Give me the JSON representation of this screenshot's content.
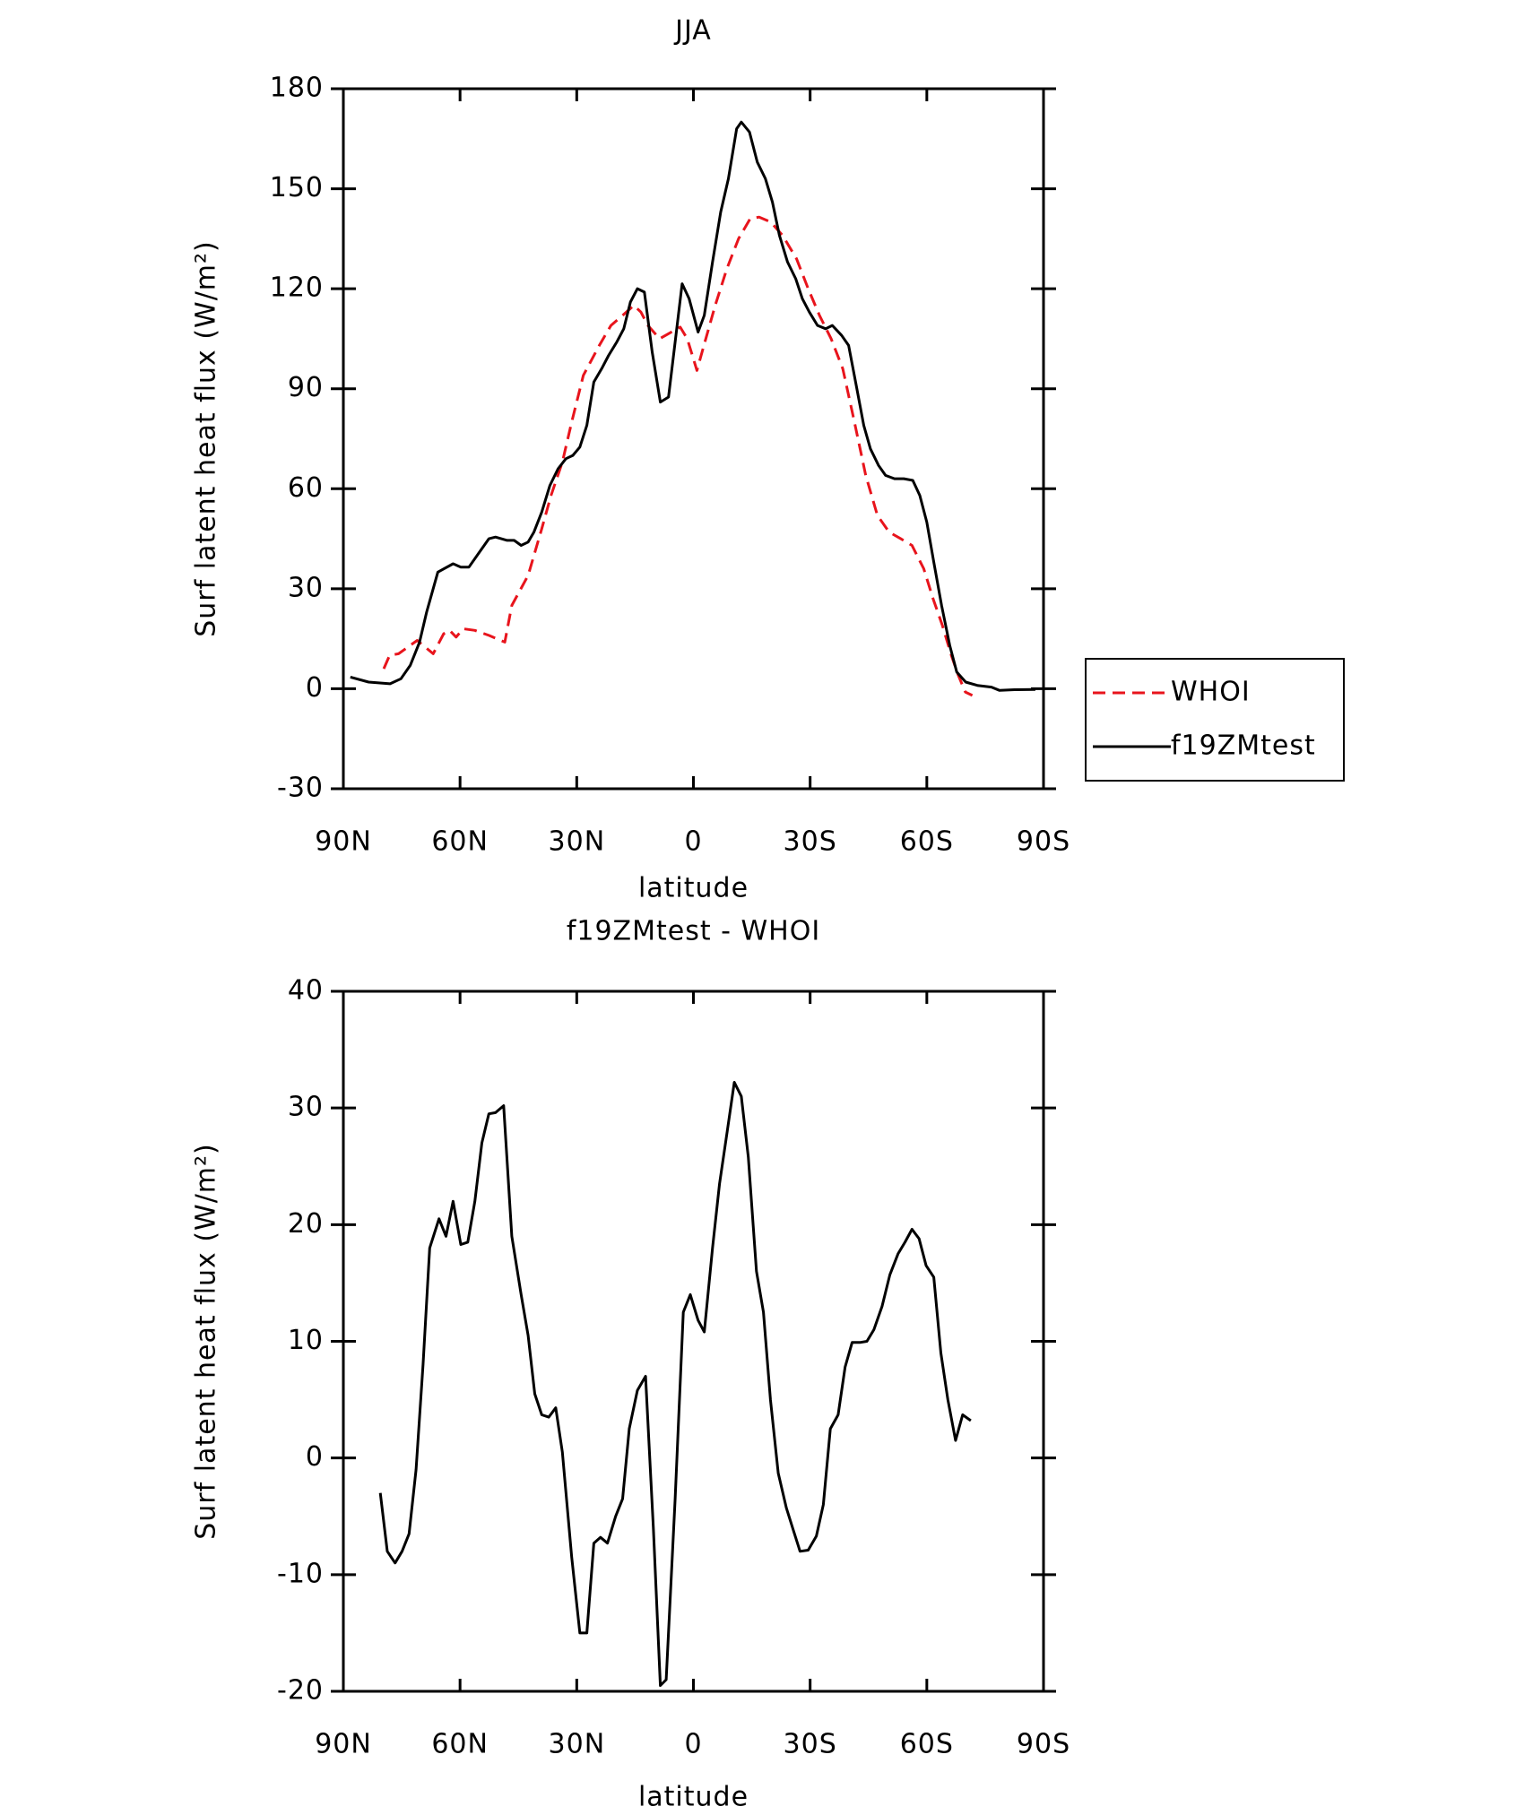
{
  "chart_data": [
    {
      "type": "line",
      "title": "JJA",
      "xlabel": "latitude",
      "ylabel": "Surf latent heat flux (W/m²)",
      "xlim": [
        90,
        -90
      ],
      "xticks": [
        {
          "value": 90,
          "label": "90N"
        },
        {
          "value": 60,
          "label": "60N"
        },
        {
          "value": 30,
          "label": "30N"
        },
        0,
        {
          "value": -30,
          "label": "30S"
        },
        {
          "value": -60,
          "label": "60S"
        },
        {
          "value": -90,
          "label": "90S"
        }
      ],
      "ylim": [
        -30,
        180
      ],
      "yticks": [
        -30,
        0,
        30,
        60,
        90,
        120,
        150,
        180
      ],
      "legend": "right",
      "series": [
        {
          "name": "WHOI",
          "color": "#e8141c",
          "dashed": true,
          "x": [
            79.6,
            78.1,
            75.8,
            74,
            71,
            66.9,
            64.2,
            62.7,
            61,
            59.2,
            56.2,
            52.6,
            48.5,
            46.7,
            42.5,
            39,
            36.6,
            33.7,
            31.3,
            28.3,
            24.2,
            21.2,
            18.2,
            15.3,
            13.5,
            11.7,
            8.7,
            6.4,
            3.4,
            1.6,
            -0.9,
            -2.7,
            -5.6,
            -8.6,
            -11.6,
            -14.6,
            -16.9,
            -19.9,
            -22.9,
            -26.5,
            -29.5,
            -32.4,
            -35.4,
            -38.4,
            -41.4,
            -44.3,
            -47.3,
            -50.3,
            -53.3,
            -56.2,
            -59.2,
            -61.6,
            -64,
            -66.3,
            -68.1,
            -69.9,
            -71.7
          ],
          "values": [
            6,
            10,
            10.5,
            12,
            14.5,
            10.5,
            16.5,
            17.5,
            15.5,
            18,
            17.5,
            16,
            14,
            25,
            34,
            48,
            58,
            68,
            80,
            94,
            103,
            109,
            112,
            115,
            113,
            109,
            105,
            106.5,
            108.5,
            105,
            95.5,
            103,
            115,
            126,
            135,
            141,
            141.5,
            140,
            136,
            129,
            120,
            112,
            105,
            96,
            80,
            64,
            52,
            47,
            45,
            43,
            36,
            27,
            19,
            10,
            4,
            -1,
            -2
          ]
        },
        {
          "name": "f19ZMtest",
          "color": "#000000",
          "dashed": false,
          "x": [
            88.2,
            83.5,
            78,
            75.2,
            72.8,
            70.4,
            68.6,
            65.7,
            61.8,
            59.8,
            57.7,
            55,
            52.6,
            50.9,
            47.9,
            46.1,
            44.3,
            42.5,
            41,
            39,
            36.9,
            34.8,
            32.8,
            31,
            29.2,
            27.4,
            25.6,
            23.6,
            21.8,
            19.7,
            17.9,
            16.2,
            14.4,
            12.6,
            10.6,
            8.5,
            6.4,
            4.7,
            2.9,
            1.1,
            -1.2,
            -2.8,
            -4.9,
            -7,
            -9,
            -11.1,
            -12.3,
            -14.4,
            -16.4,
            -18.5,
            -20.3,
            -22.1,
            -24.2,
            -26.3,
            -28,
            -29.8,
            -31.9,
            -34,
            -35.7,
            -38.1,
            -39.9,
            -41.7,
            -43.8,
            -45.5,
            -47.6,
            -49.4,
            -51.7,
            -54.1,
            -56.4,
            -58.2,
            -60,
            -61.8,
            -63.8,
            -65.9,
            -67.7,
            -70,
            -73,
            -76.6,
            -78.7,
            -82.5,
            -87.9
          ],
          "values": [
            3.5,
            2,
            1.5,
            3,
            7,
            14,
            23,
            35,
            37.5,
            36.5,
            36.5,
            41,
            45,
            45.5,
            44.5,
            44.5,
            43,
            44,
            47,
            53,
            61,
            66,
            69,
            70,
            72.5,
            79,
            92,
            96,
            100,
            104,
            108,
            116,
            120,
            119,
            101,
            86,
            87.5,
            104,
            121.5,
            117,
            107,
            112,
            128,
            143,
            153,
            168,
            170,
            167,
            158,
            153,
            146,
            136,
            128,
            123,
            117,
            113,
            109,
            108,
            109,
            106,
            103,
            92,
            79,
            72,
            67,
            64,
            63,
            63,
            62.5,
            58,
            50,
            38,
            25,
            13,
            5,
            2,
            1,
            0.5,
            -0.5,
            -0.3,
            -0.2
          ]
        }
      ]
    },
    {
      "type": "line",
      "title": "f19ZMtest - WHOI",
      "xlabel": "latitude",
      "ylabel": "Surf latent heat flux (W/m²)",
      "xlim": [
        90,
        -90
      ],
      "xticks": [
        {
          "value": 90,
          "label": "90N"
        },
        {
          "value": 60,
          "label": "60N"
        },
        {
          "value": 30,
          "label": "30N"
        },
        0,
        {
          "value": -30,
          "label": "30S"
        },
        {
          "value": -60,
          "label": "60S"
        },
        {
          "value": -90,
          "label": "90S"
        }
      ],
      "ylim": [
        -20,
        40
      ],
      "yticks": [
        -20,
        -10,
        0,
        10,
        20,
        30,
        40
      ],
      "series": [
        {
          "color": "#000000",
          "dashed": false,
          "x": [
            80.5,
            78.7,
            76.7,
            74.9,
            73.1,
            71.3,
            69.5,
            67.8,
            65.4,
            63.6,
            61.8,
            59.8,
            58,
            56.2,
            54.4,
            52.6,
            50.9,
            48.8,
            46.7,
            44.3,
            42.5,
            40.8,
            39,
            37.2,
            35.4,
            33.7,
            31.3,
            29.2,
            27.4,
            25.6,
            23.9,
            22.1,
            20,
            18.2,
            16.5,
            14.4,
            12.3,
            10.3,
            8.5,
            7,
            4.7,
            2.6,
            0.8,
            -1.2,
            -2.8,
            -4.9,
            -6.7,
            -8.7,
            -10.5,
            -12.3,
            -14.1,
            -16.2,
            -18,
            -19.8,
            -21.8,
            -23.9,
            -25.7,
            -27.4,
            -29.5,
            -31.6,
            -33.4,
            -35.2,
            -37.2,
            -39,
            -40.8,
            -42.8,
            -44.6,
            -46.4,
            -48.5,
            -50.5,
            -52.6,
            -54.4,
            -56.2,
            -58,
            -59.8,
            -61.8,
            -63.6,
            -65.4,
            -67.4,
            -69.2,
            -71.3
          ],
          "values": [
            -3,
            -8,
            -9,
            -8,
            -6.5,
            -1,
            8,
            18,
            20.5,
            19,
            22,
            18.3,
            18.5,
            22,
            27,
            29.5,
            29.6,
            30.2,
            19,
            14,
            10.5,
            5.5,
            3.7,
            3.5,
            4.3,
            0.5,
            -8.5,
            -15,
            -15,
            -7.3,
            -6.8,
            -7.3,
            -5,
            -3.5,
            2.5,
            5.8,
            7,
            -6,
            -19.5,
            -19,
            -3.5,
            12.5,
            14,
            11.8,
            10.8,
            18,
            23.5,
            28,
            32.2,
            31,
            25.8,
            16,
            12.5,
            5,
            -1.3,
            -4.3,
            -6.2,
            -8,
            -7.9,
            -6.7,
            -4,
            2.5,
            3.7,
            7.8,
            9.9,
            9.9,
            10,
            11,
            13,
            15.7,
            17.5,
            18.5,
            19.6,
            18.8,
            16.5,
            15.5,
            9,
            5,
            1.5,
            3.7,
            3.2
          ]
        }
      ]
    }
  ]
}
